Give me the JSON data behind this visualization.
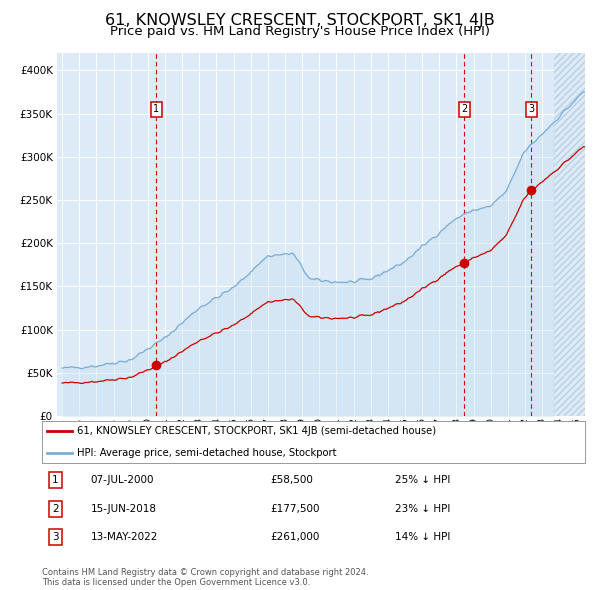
{
  "title": "61, KNOWSLEY CRESCENT, STOCKPORT, SK1 4JB",
  "subtitle": "Price paid vs. HM Land Registry's House Price Index (HPI)",
  "title_fontsize": 11.5,
  "subtitle_fontsize": 9.5,
  "background_color": "#ddeaf7",
  "grid_color": "#ffffff",
  "sale_times": [
    2000.5,
    2018.458,
    2022.37
  ],
  "sale_prices": [
    58500,
    177500,
    261000
  ],
  "sale_labels": [
    "1",
    "2",
    "3"
  ],
  "sale_date_strs": [
    "07-JUL-2000",
    "15-JUN-2018",
    "13-MAY-2022"
  ],
  "sale_pct_strs": [
    "25% ↓ HPI",
    "23% ↓ HPI",
    "14% ↓ HPI"
  ],
  "sale_price_strs": [
    "£58,500",
    "£177,500",
    "£261,000"
  ],
  "legend_line1": "61, KNOWSLEY CRESCENT, STOCKPORT, SK1 4JB (semi-detached house)",
  "legend_line2": "HPI: Average price, semi-detached house, Stockport",
  "footer": "Contains HM Land Registry data © Crown copyright and database right 2024.\nThis data is licensed under the Open Government Licence v3.0.",
  "red_color": "#cc0000",
  "blue_color": "#7aadd4",
  "blue_fill": "#c5ddf0",
  "ylim": [
    0,
    420000
  ],
  "xlim_start": 1994.7,
  "xlim_end": 2025.5,
  "hatch_start": 2023.7
}
